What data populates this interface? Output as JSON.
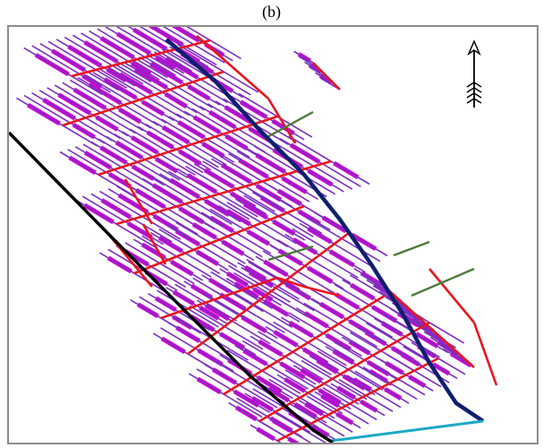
{
  "figure": {
    "caption": "(b)"
  },
  "map": {
    "type": "irrigation-drainage network schematic",
    "north_arrow": true,
    "colors": {
      "lateral_lines": "#7b2fbf",
      "fields": "#d400d4",
      "main_canals": "#e8151e",
      "primary_canal": "#0d1f6e",
      "secondary_canal": "#1aa8c8",
      "boundary_road": "#000000",
      "branch_drains": "#4a7a3a"
    },
    "icons": {
      "north": "north-arrow-icon"
    }
  }
}
